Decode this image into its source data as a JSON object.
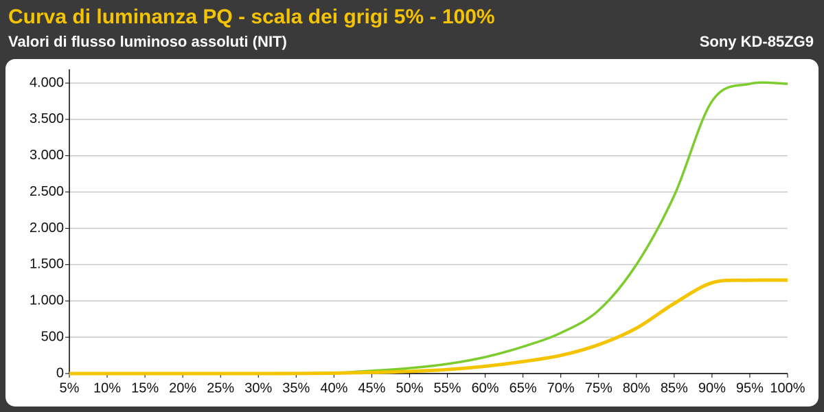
{
  "chart_data": {
    "type": "line",
    "title": "Curva di luminanza PQ  - scala dei grigi 5% - 100%",
    "subtitle": "Valori di flusso luminoso assoluti (NIT)",
    "annotation": "Sony KD-85ZG9",
    "x": [
      5,
      10,
      15,
      20,
      25,
      30,
      35,
      40,
      45,
      50,
      55,
      60,
      65,
      70,
      75,
      80,
      85,
      90,
      95,
      100
    ],
    "series": [
      {
        "color": "#7ccc2e",
        "values": [
          0,
          0,
          0,
          0,
          0,
          1,
          3,
          10,
          38,
          75,
          132,
          227,
          370,
          560,
          870,
          1500,
          2450,
          3750,
          3990,
          3990
        ]
      },
      {
        "color": "#f5c400",
        "values": [
          0,
          0,
          0,
          0,
          0,
          0,
          1,
          5,
          15,
          30,
          55,
          100,
          165,
          250,
          397,
          625,
          965,
          1250,
          1285,
          1286
        ]
      }
    ],
    "xlim": [
      5,
      100
    ],
    "xticks": [
      {
        "value": 5,
        "label": "5%"
      },
      {
        "value": 10,
        "label": "10%"
      },
      {
        "value": 15,
        "label": "15%"
      },
      {
        "value": 20,
        "label": "20%"
      },
      {
        "value": 25,
        "label": "25%"
      },
      {
        "value": 30,
        "label": "30%"
      },
      {
        "value": 35,
        "label": "35%"
      },
      {
        "value": 40,
        "label": "40%"
      },
      {
        "value": 45,
        "label": "45%"
      },
      {
        "value": 50,
        "label": "50%"
      },
      {
        "value": 55,
        "label": "55%"
      },
      {
        "value": 60,
        "label": "60%"
      },
      {
        "value": 65,
        "label": "65%"
      },
      {
        "value": 70,
        "label": "70%"
      },
      {
        "value": 75,
        "label": "75%"
      },
      {
        "value": 80,
        "label": "80%"
      },
      {
        "value": 85,
        "label": "85%"
      },
      {
        "value": 90,
        "label": "90%"
      },
      {
        "value": 95,
        "label": "95%"
      },
      {
        "value": 100,
        "label": "100%"
      }
    ],
    "ylim": [
      0,
      4000
    ],
    "yticks": [
      0,
      500,
      {
        "value": 1000,
        "label": "1.000"
      },
      {
        "value": 1500,
        "label": "1.500"
      },
      {
        "value": 2000,
        "label": "2.000"
      },
      {
        "value": 2500,
        "label": "2.500"
      },
      {
        "value": 3000,
        "label": "3.000"
      },
      {
        "value": 3500,
        "label": "3.500"
      },
      {
        "value": 4000,
        "label": "4.000"
      }
    ],
    "grid": true
  }
}
